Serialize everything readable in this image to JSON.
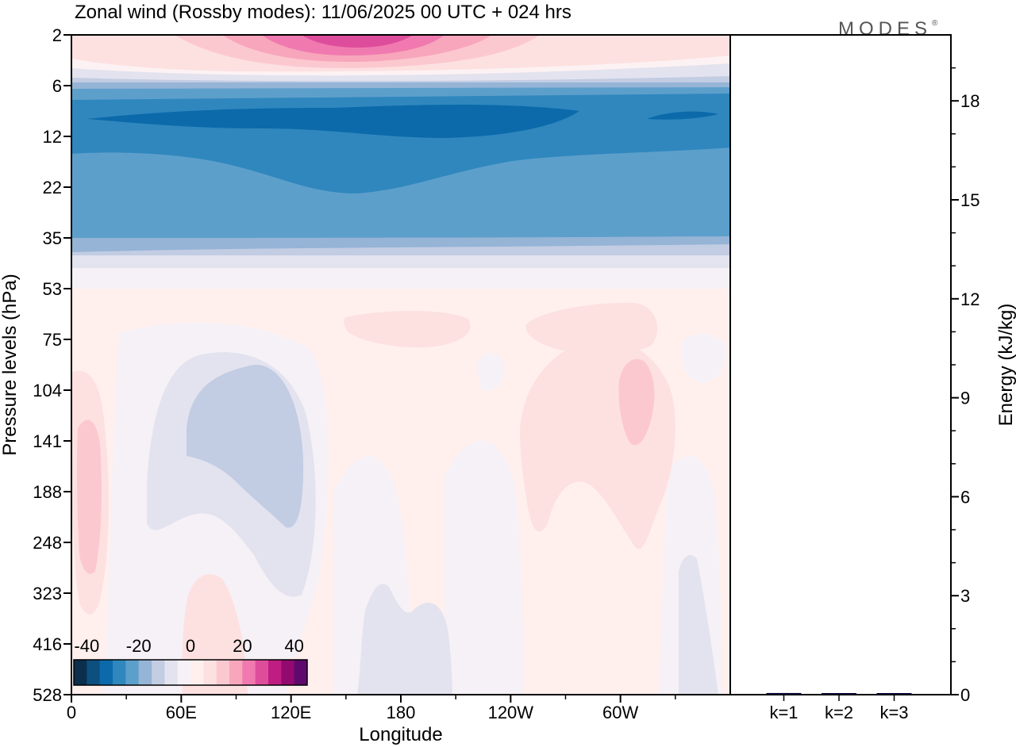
{
  "title": "Zonal wind (Rossby modes):  11/06/2025  00 UTC  + 024 hrs",
  "logo": "MODES",
  "logo_mark": "®",
  "chart_data": [
    {
      "type": "heatmap",
      "xlabel": "Longitude",
      "ylabel": "Pressure levels (hPa)",
      "x_ticks": [
        "0",
        "60E",
        "120E",
        "180",
        "120W",
        "60W"
      ],
      "x_tick_degrees": [
        0,
        60,
        120,
        180,
        240,
        300
      ],
      "x_range_degrees": [
        0,
        360
      ],
      "y_ticks": [
        "2",
        "6",
        "12",
        "22",
        "35",
        "53",
        "75",
        "104",
        "141",
        "188",
        "248",
        "323",
        "416",
        "528"
      ],
      "y_axis": "pressure levels, listed top to bottom",
      "colorbar": {
        "tick_labels": [
          "-40",
          "-20",
          "0",
          "20",
          "40"
        ],
        "tick_values": [
          -40,
          -20,
          0,
          20,
          40
        ],
        "bin_edges": [
          -45,
          -40,
          -35,
          -30,
          -25,
          -20,
          -15,
          -10,
          -5,
          0,
          5,
          10,
          15,
          20,
          25,
          30,
          35,
          40,
          45
        ],
        "colors": [
          "#0b2f4c",
          "#0d4f7e",
          "#0c6aab",
          "#2f87bd",
          "#5d9fcb",
          "#95b4d6",
          "#c2cce3",
          "#e3e3ef",
          "#f6f1f6",
          "#fff0ee",
          "#fde1e1",
          "#fcc8cf",
          "#f8a6bb",
          "#f07ab0",
          "#de4d9c",
          "#c01d83",
          "#920a6f",
          "#5e0a6c"
        ]
      },
      "description_bands": "Approximate zonal wind (m/s) per level",
      "level_values": [
        {
          "level": "2",
          "value": 5
        },
        {
          "level": "6",
          "value": -10
        },
        {
          "level": "12",
          "value": -30
        },
        {
          "level": "22",
          "value": -25
        },
        {
          "level": "35",
          "value": -10
        },
        {
          "level": "53",
          "value": 2
        },
        {
          "level": "75",
          "value": 5
        },
        {
          "level": "104",
          "value": 0
        },
        {
          "level": "141",
          "value": 0
        },
        {
          "level": "188",
          "value": 0
        },
        {
          "level": "248",
          "value": 0
        },
        {
          "level": "323",
          "value": 0
        },
        {
          "level": "416",
          "value": 0
        },
        {
          "level": "528",
          "value": 0
        }
      ]
    },
    {
      "type": "bar",
      "ylabel": "Energy (kJ/kg)",
      "categories": [
        "k=1",
        "k=2",
        "k=3"
      ],
      "values": [
        0.05,
        0.03,
        0.03
      ],
      "ylim": [
        0,
        20
      ],
      "y_ticks": [
        "0",
        "3",
        "6",
        "9",
        "12",
        "15",
        "18"
      ],
      "y_tick_values": [
        0,
        3,
        6,
        9,
        12,
        15,
        18
      ],
      "bar_color": "#000033"
    }
  ]
}
